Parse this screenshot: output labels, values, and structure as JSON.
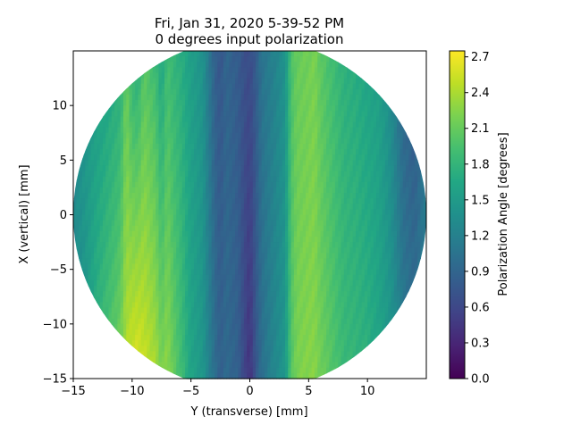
{
  "chart_data": {
    "type": "heatmap",
    "title_line1": "Fri, Jan 31, 2020 5-39-52 PM",
    "title_line2": "0 degrees input polarization",
    "xlabel": "Y (transverse) [mm]",
    "ylabel": "X (vertical) [mm]",
    "xlim": [
      -15,
      15
    ],
    "ylim": [
      -15,
      15
    ],
    "x_ticks": [
      -15,
      -10,
      -5,
      0,
      5,
      10
    ],
    "y_ticks": [
      -15,
      -10,
      -5,
      0,
      5,
      10
    ],
    "aperture_radius_mm": 15,
    "colorbar": {
      "label": "Polarization Angle [degrees]",
      "min": 0.0,
      "max": 2.75,
      "ticks": [
        "0.0",
        "0.3",
        "0.6",
        "0.9",
        "1.2",
        "1.5",
        "1.8",
        "2.1",
        "2.4",
        "2.7"
      ],
      "colormap": "viridis"
    },
    "column_profile": {
      "y_mm": [
        -15,
        -14,
        -13,
        -12,
        -11,
        -10.5,
        -10,
        -9.5,
        -9,
        -8,
        -7.5,
        -7,
        -6.5,
        -6,
        -5,
        -4,
        -3,
        -2.5,
        -2,
        -1,
        -0.5,
        0,
        0.5,
        1,
        2,
        3,
        3.5,
        4,
        5,
        5.5,
        6,
        7,
        8,
        9,
        10,
        11,
        12,
        13,
        14,
        15
      ],
      "angle_top_deg": [
        1.3,
        1.45,
        1.5,
        1.6,
        1.7,
        2.1,
        1.75,
        1.7,
        2.0,
        1.85,
        1.6,
        1.9,
        1.8,
        1.75,
        1.55,
        1.4,
        0.85,
        0.75,
        0.9,
        0.8,
        0.7,
        0.65,
        0.8,
        1.05,
        1.2,
        1.4,
        1.95,
        2.1,
        2.15,
        2.2,
        2.05,
        1.9,
        1.75,
        1.7,
        1.6,
        1.55,
        1.3,
        0.9,
        0.75,
        1.1
      ],
      "angle_bottom_deg": [
        1.3,
        1.45,
        1.8,
        2.0,
        2.2,
        2.45,
        2.6,
        2.65,
        2.55,
        2.4,
        2.2,
        2.3,
        2.1,
        1.95,
        1.6,
        1.45,
        1.0,
        0.85,
        0.95,
        0.85,
        0.6,
        0.4,
        0.75,
        1.0,
        1.25,
        1.45,
        2.0,
        2.2,
        2.25,
        2.25,
        2.15,
        2.0,
        1.85,
        1.8,
        1.75,
        1.6,
        1.45,
        1.15,
        1.05,
        1.2
      ]
    },
    "grid": false
  }
}
